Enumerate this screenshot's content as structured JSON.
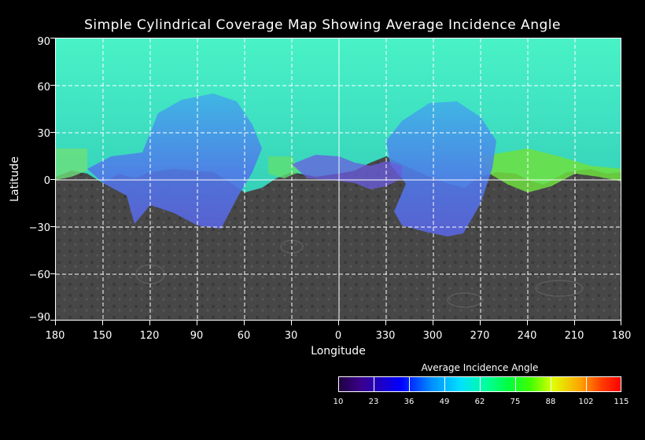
{
  "title": "Simple Cylindrical Coverage Map Showing Average Incidence Angle",
  "axes": {
    "x_label": "Longitude",
    "y_label": "Latitude",
    "x_ticks": [
      "180",
      "150",
      "120",
      "90",
      "60",
      "30",
      "0",
      "330",
      "300",
      "270",
      "240",
      "210",
      "180"
    ],
    "y_ticks": [
      "90",
      "60",
      "30",
      "0",
      "−30",
      "−60",
      "−90"
    ]
  },
  "colorbar": {
    "title": "Average Incidence Angle",
    "ticks": [
      "10",
      "23",
      "36",
      "49",
      "62",
      "75",
      "88",
      "102",
      "115"
    ]
  },
  "colors": {
    "background": "#000000",
    "grid": "#ffffff",
    "unmapped_surface": "#4a4a4a",
    "coverage_north": "#3ee8c0",
    "coverage_low_angle": "#4f64e6"
  }
}
